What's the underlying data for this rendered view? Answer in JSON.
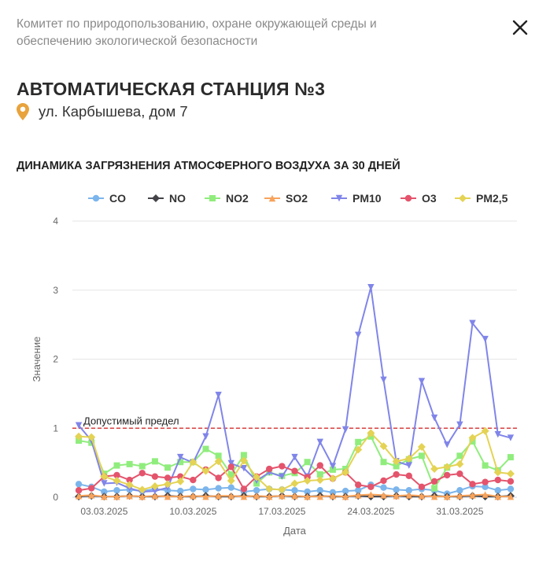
{
  "header": {
    "organization": "Комитет по природопользованию, охране окружающей среды и обеспечению экологической безопасности",
    "close_icon": "close-icon"
  },
  "station": {
    "title": "АВТОМАТИЧЕСКАЯ СТАНЦИЯ №3",
    "address": "ул. Карбышева, дом 7",
    "address_icon": "location-pin-icon",
    "pin_color": "#e8a33d"
  },
  "chart_section": {
    "title": "ДИНАМИКА ЗАГРЯЗНЕНИЯ АТМОСФЕРНОГО ВОЗДУХА ЗА 30 ДНЕЙ"
  },
  "chart_data": {
    "type": "line",
    "x_start": "01.03.2025",
    "x_labels": [
      "03.03.2025",
      "10.03.2025",
      "17.03.2025",
      "24.03.2025",
      "31.03.2025"
    ],
    "xlabel": "Дата",
    "ylabel": "Значение",
    "ylim": [
      0,
      4
    ],
    "yticks": [
      0,
      1,
      2,
      3,
      4
    ],
    "grid": true,
    "legend_position": "top",
    "threshold": {
      "value": 1,
      "label": "Допустимый предел",
      "color": "#d94040"
    },
    "series": [
      {
        "name": "CO",
        "color": "#7cb5ec",
        "marker": "circle",
        "values": [
          0.19,
          0.15,
          0.08,
          0.1,
          0.11,
          0.09,
          0.12,
          0.1,
          0.09,
          0.12,
          0.11,
          0.13,
          0.14,
          0.08,
          0.1,
          0.12,
          0.11,
          0.1,
          0.08,
          0.1,
          0.07,
          0.09,
          0.1,
          0.18,
          0.14,
          0.11,
          0.1,
          0.12,
          0.1,
          0.05,
          0.1,
          0.16,
          0.15,
          0.1,
          0.12
        ]
      },
      {
        "name": "NO",
        "color": "#434348",
        "marker": "diamond",
        "values": [
          0.01,
          0.02,
          0.01,
          0.01,
          0.02,
          0.01,
          0.01,
          0.02,
          0.01,
          0.01,
          0.02,
          0.01,
          0.01,
          0.02,
          0.01,
          0.01,
          0.02,
          0.01,
          0.01,
          0.02,
          0.01,
          0.01,
          0.02,
          0.01,
          0.01,
          0.02,
          0.01,
          0.01,
          0.02,
          0.01,
          0.01,
          0.02,
          0.01,
          0.01,
          0.02
        ]
      },
      {
        "name": "NO2",
        "color": "#90ed7d",
        "marker": "square",
        "values": [
          0.82,
          0.79,
          0.34,
          0.46,
          0.48,
          0.45,
          0.52,
          0.43,
          0.51,
          0.51,
          0.7,
          0.6,
          0.33,
          0.61,
          0.2,
          0.36,
          0.31,
          0.35,
          0.51,
          0.33,
          0.4,
          0.41,
          0.8,
          0.88,
          0.51,
          0.45,
          0.55,
          0.6,
          0.13,
          0.43,
          0.6,
          0.81,
          0.46,
          0.39,
          0.58
        ]
      },
      {
        "name": "SO2",
        "color": "#f7a35c",
        "marker": "triangle",
        "values": [
          0.02,
          0.03,
          0.01,
          0.01,
          0.02,
          0.01,
          0.02,
          0.01,
          0.01,
          0.02,
          0.01,
          0.02,
          0.02,
          0.01,
          0.02,
          0.01,
          0.02,
          0.02,
          0.01,
          0.01,
          0.02,
          0.01,
          0.03,
          0.04,
          0.03,
          0.02,
          0.03,
          0.02,
          0.01,
          0.01,
          0.02,
          0.03,
          0.04,
          0.01,
          0.01
        ]
      },
      {
        "name": "PM10",
        "color": "#8085e9",
        "marker": "triangle-down",
        "values": [
          1.04,
          0.82,
          0.2,
          0.21,
          0.13,
          0.08,
          0.09,
          0.14,
          0.58,
          0.5,
          0.88,
          1.48,
          0.49,
          0.42,
          0.24,
          0.36,
          0.3,
          0.58,
          0.3,
          0.8,
          0.45,
          0.98,
          2.35,
          3.04,
          1.7,
          0.52,
          0.46,
          1.68,
          1.15,
          0.76,
          1.05,
          2.52,
          2.29,
          0.91,
          0.86
        ]
      },
      {
        "name": "O3",
        "color": "#e4546c",
        "marker": "circle",
        "values": [
          0.1,
          0.13,
          0.3,
          0.32,
          0.25,
          0.35,
          0.3,
          0.28,
          0.3,
          0.25,
          0.4,
          0.28,
          0.44,
          0.12,
          0.3,
          0.41,
          0.45,
          0.38,
          0.29,
          0.46,
          0.27,
          0.36,
          0.18,
          0.15,
          0.24,
          0.33,
          0.31,
          0.15,
          0.23,
          0.32,
          0.34,
          0.19,
          0.22,
          0.25,
          0.23
        ]
      },
      {
        "name": "PM2,5",
        "color": "#e4d354",
        "marker": "diamond",
        "values": [
          0.88,
          0.87,
          0.3,
          0.24,
          0.18,
          0.11,
          0.16,
          0.19,
          0.23,
          0.51,
          0.38,
          0.52,
          0.24,
          0.53,
          0.29,
          0.12,
          0.11,
          0.2,
          0.24,
          0.25,
          0.27,
          0.36,
          0.69,
          0.93,
          0.74,
          0.52,
          0.56,
          0.73,
          0.41,
          0.44,
          0.48,
          0.86,
          0.96,
          0.36,
          0.34
        ]
      }
    ]
  }
}
